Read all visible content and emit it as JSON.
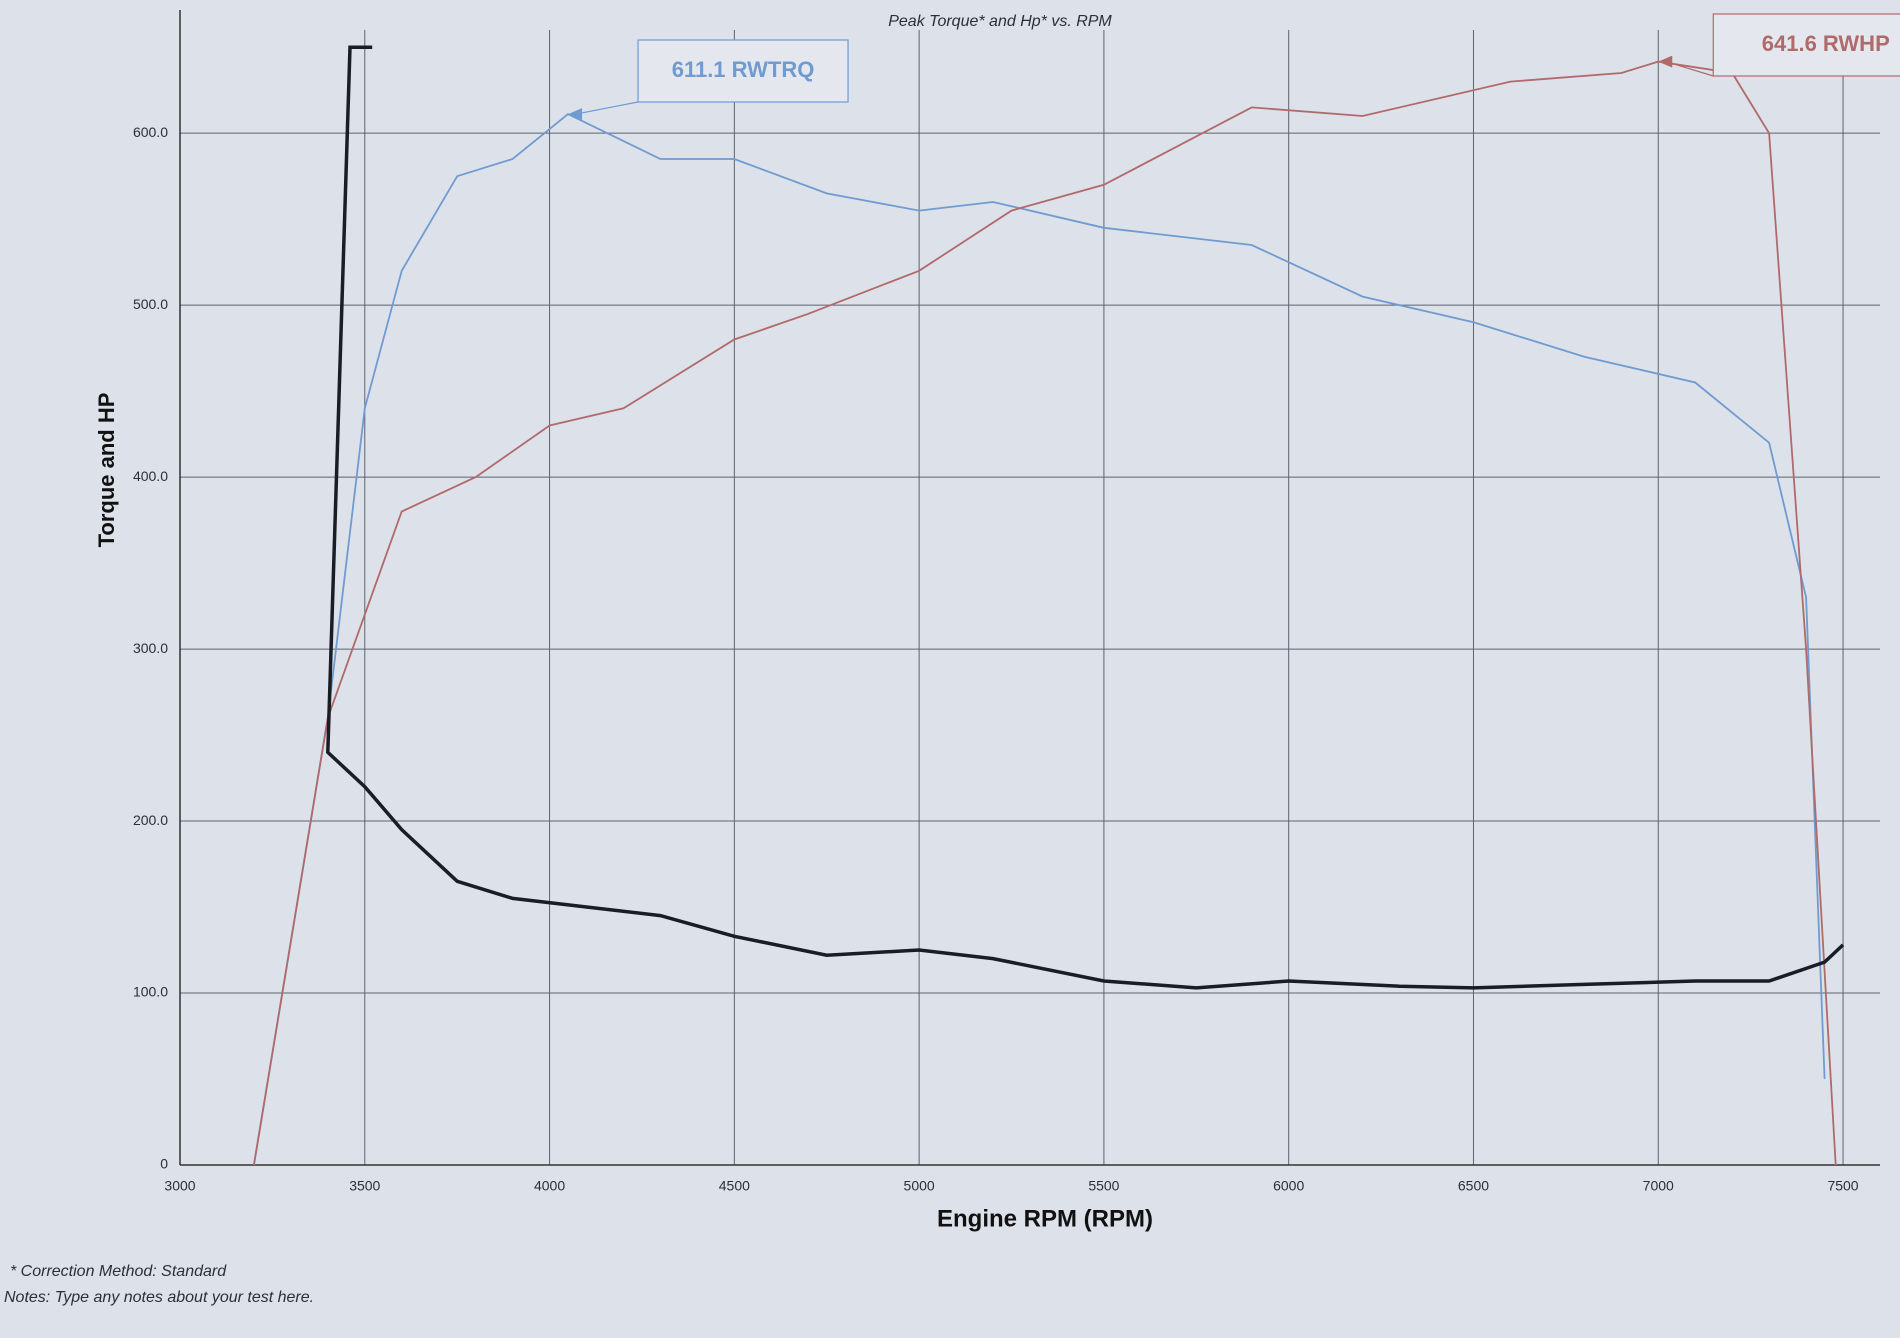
{
  "chart_data": {
    "type": "line",
    "title": "Peak Torque* and Hp* vs. RPM",
    "xlabel": "Engine RPM (RPM)",
    "ylabel": "Torque and HP",
    "xlim": [
      3000,
      7600
    ],
    "xticks": [
      3000,
      3500,
      4000,
      4500,
      5000,
      5500,
      6000,
      6500,
      7000,
      7500
    ],
    "ylim": [
      0,
      660
    ],
    "yticks": [
      0,
      {
        "value": 100,
        "label": "100.0"
      },
      {
        "value": 200,
        "label": "200.0"
      },
      {
        "value": 300,
        "label": "300.0"
      },
      {
        "value": 400,
        "label": "400.0"
      },
      {
        "value": 500,
        "label": "500.0"
      },
      {
        "value": 600,
        "label": "600.0"
      }
    ],
    "grid": true,
    "series": [
      {
        "color": "#6f9bd0",
        "x": [
          3200,
          3400,
          3500,
          3600,
          3750,
          3900,
          4050,
          4300,
          4500,
          4750,
          5000,
          5200,
          5500,
          5900,
          6200,
          6500,
          6800,
          7100,
          7300,
          7400,
          7450
        ],
        "values": [
          0,
          260,
          440,
          520,
          575,
          585,
          611.1,
          585,
          585,
          565,
          555,
          560,
          545,
          535,
          505,
          490,
          470,
          455,
          420,
          330,
          50
        ]
      },
      {
        "color": "#b06a6a",
        "x": [
          3200,
          3400,
          3600,
          3800,
          4000,
          4200,
          4500,
          4700,
          5000,
          5250,
          5500,
          5900,
          6200,
          6600,
          6900,
          7000,
          7200,
          7300,
          7400,
          7480
        ],
        "values": [
          0,
          260,
          380,
          400,
          430,
          440,
          480,
          495,
          520,
          555,
          570,
          615,
          610,
          630,
          635,
          641.6,
          635,
          600,
          300,
          0
        ]
      },
      {
        "color": "#1a1d24",
        "x": [
          3520,
          3460,
          3400,
          3500,
          3600,
          3750,
          3900,
          4100,
          4300,
          4500,
          4750,
          5000,
          5200,
          5500,
          5750,
          6000,
          6300,
          6500,
          6800,
          7100,
          7300,
          7450,
          7500
        ],
        "values": [
          650,
          650,
          240,
          220,
          195,
          165,
          155,
          150,
          145,
          133,
          122,
          125,
          120,
          107,
          103,
          107,
          104,
          103,
          105,
          107,
          107,
          118,
          128
        ]
      }
    ],
    "annotations": [
      {
        "text": "611.1 RWTRQ",
        "series": 0,
        "point": 6
      },
      {
        "text": "641.6 RWHP",
        "series": 1,
        "point": 15
      }
    ],
    "footnotes": [
      "* Correction Method: Standard",
      "Notes: Type any notes about your test here."
    ]
  }
}
